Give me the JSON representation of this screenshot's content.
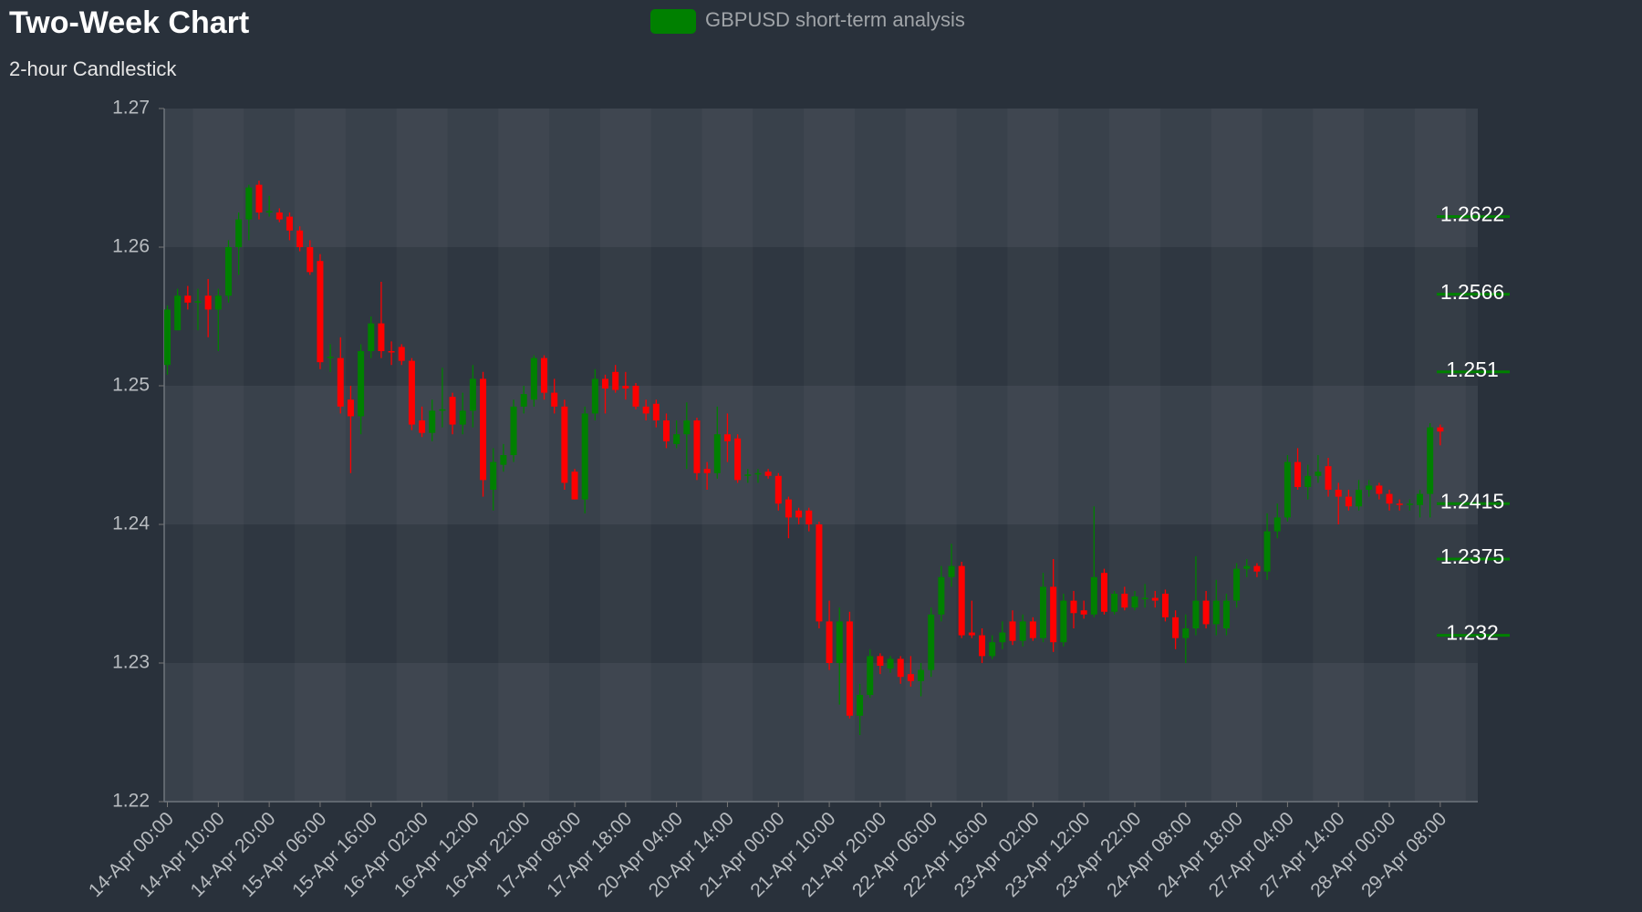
{
  "chart_data": {
    "type": "candlestick",
    "title": "Two-Week Chart",
    "subtitle": "2-hour Candlestick",
    "series": [
      {
        "name": "GBPUSD short-term analysis",
        "color": "#008000",
        "up_color": "#008000",
        "down_color": "#ff0000",
        "values": [
          [
            1.2515,
            1.2558,
            1.2508,
            1.2555
          ],
          [
            1.254,
            1.257,
            1.254,
            1.2565
          ],
          [
            1.2565,
            1.2572,
            1.2555,
            1.256
          ],
          [
            1.256,
            1.257,
            1.254,
            1.2561
          ],
          [
            1.2565,
            1.2577,
            1.2535,
            1.2555
          ],
          [
            1.2555,
            1.257,
            1.2525,
            1.2565
          ],
          [
            1.2565,
            1.2605,
            1.256,
            1.26
          ],
          [
            1.26,
            1.2625,
            1.258,
            1.262
          ],
          [
            1.262,
            1.2645,
            1.2605,
            1.2643
          ],
          [
            1.2645,
            1.2648,
            1.262,
            1.2625
          ],
          [
            1.2625,
            1.2637,
            1.2622,
            1.2626
          ],
          [
            1.2625,
            1.2628,
            1.2618,
            1.262
          ],
          [
            1.2622,
            1.2625,
            1.2605,
            1.2612
          ],
          [
            1.2612,
            1.2615,
            1.2597,
            1.26
          ],
          [
            1.26,
            1.2605,
            1.258,
            1.2582
          ],
          [
            1.259,
            1.2595,
            1.2512,
            1.2517
          ],
          [
            1.252,
            1.253,
            1.251,
            1.2521
          ],
          [
            1.252,
            1.2535,
            1.248,
            1.2485
          ],
          [
            1.249,
            1.25,
            1.2437,
            1.2478
          ],
          [
            1.2478,
            1.253,
            1.2465,
            1.2525
          ],
          [
            1.2525,
            1.255,
            1.252,
            1.2545
          ],
          [
            1.2545,
            1.2575,
            1.252,
            1.2525
          ],
          [
            1.2525,
            1.2532,
            1.2515,
            1.2524
          ],
          [
            1.2528,
            1.253,
            1.2515,
            1.2518
          ],
          [
            1.2518,
            1.252,
            1.2468,
            1.2472
          ],
          [
            1.2475,
            1.2485,
            1.2463,
            1.2466
          ],
          [
            1.2466,
            1.249,
            1.246,
            1.2482
          ],
          [
            1.2482,
            1.2513,
            1.247,
            1.2483
          ],
          [
            1.2492,
            1.2495,
            1.2465,
            1.2472
          ],
          [
            1.2472,
            1.2495,
            1.2465,
            1.2482
          ],
          [
            1.2482,
            1.2515,
            1.247,
            1.2505
          ],
          [
            1.2505,
            1.251,
            1.242,
            1.2432
          ],
          [
            1.2425,
            1.2455,
            1.241,
            1.2445
          ],
          [
            1.2443,
            1.2458,
            1.2438,
            1.245
          ],
          [
            1.245,
            1.249,
            1.2445,
            1.2485
          ],
          [
            1.2485,
            1.25,
            1.248,
            1.2494
          ],
          [
            1.249,
            1.2522,
            1.2485,
            1.252
          ],
          [
            1.252,
            1.2522,
            1.249,
            1.2495
          ],
          [
            1.2495,
            1.2505,
            1.248,
            1.2485
          ],
          [
            1.2485,
            1.249,
            1.2425,
            1.243
          ],
          [
            1.2438,
            1.244,
            1.2418,
            1.2418
          ],
          [
            1.2418,
            1.2485,
            1.2408,
            1.248
          ],
          [
            1.248,
            1.2512,
            1.2475,
            1.2505
          ],
          [
            1.2505,
            1.2508,
            1.248,
            1.2498
          ],
          [
            1.251,
            1.2515,
            1.2495,
            1.2497
          ],
          [
            1.25,
            1.251,
            1.249,
            1.2498
          ],
          [
            1.25,
            1.2502,
            1.2483,
            1.2485
          ],
          [
            1.2485,
            1.249,
            1.2475,
            1.248
          ],
          [
            1.2487,
            1.249,
            1.247,
            1.2475
          ],
          [
            1.2475,
            1.248,
            1.2455,
            1.246
          ],
          [
            1.2458,
            1.2475,
            1.2455,
            1.2465
          ],
          [
            1.2465,
            1.2488,
            1.244,
            1.2475
          ],
          [
            1.2475,
            1.2477,
            1.2432,
            1.2437
          ],
          [
            1.244,
            1.2445,
            1.2425,
            1.2437
          ],
          [
            1.2437,
            1.2485,
            1.2433,
            1.2465
          ],
          [
            1.2465,
            1.248,
            1.2445,
            1.246
          ],
          [
            1.2462,
            1.2465,
            1.243,
            1.2432
          ],
          [
            1.2435,
            1.244,
            1.243,
            1.2436
          ],
          [
            1.2436,
            1.244,
            1.243,
            1.2437
          ],
          [
            1.2438,
            1.244,
            1.2433,
            1.2435
          ],
          [
            1.2435,
            1.2437,
            1.241,
            1.2415
          ],
          [
            1.2418,
            1.242,
            1.239,
            1.2405
          ],
          [
            1.241,
            1.2412,
            1.24,
            1.2405
          ],
          [
            1.241,
            1.2412,
            1.2395,
            1.24
          ],
          [
            1.24,
            1.2402,
            1.2325,
            1.233
          ],
          [
            1.233,
            1.2345,
            1.2295,
            1.23
          ],
          [
            1.23,
            1.234,
            1.227,
            1.233
          ],
          [
            1.233,
            1.2337,
            1.226,
            1.2262
          ],
          [
            1.2262,
            1.2285,
            1.2248,
            1.2277
          ],
          [
            1.2277,
            1.231,
            1.2275,
            1.2305
          ],
          [
            1.2305,
            1.2307,
            1.2292,
            1.2298
          ],
          [
            1.2296,
            1.2305,
            1.2293,
            1.2303
          ],
          [
            1.2303,
            1.2305,
            1.2285,
            1.229
          ],
          [
            1.2292,
            1.2305,
            1.2283,
            1.2287
          ],
          [
            1.2287,
            1.23,
            1.2276,
            1.2295
          ],
          [
            1.2295,
            1.234,
            1.229,
            1.2335
          ],
          [
            1.2335,
            1.237,
            1.233,
            1.2362
          ],
          [
            1.2362,
            1.2386,
            1.2355,
            1.237
          ],
          [
            1.237,
            1.2373,
            1.2318,
            1.232
          ],
          [
            1.2322,
            1.2345,
            1.2318,
            1.232
          ],
          [
            1.232,
            1.2325,
            1.23,
            1.2305
          ],
          [
            1.2305,
            1.232,
            1.2303,
            1.2315
          ],
          [
            1.2315,
            1.233,
            1.231,
            1.2322
          ],
          [
            1.233,
            1.2338,
            1.2313,
            1.2316
          ],
          [
            1.2316,
            1.2335,
            1.2312,
            1.233
          ],
          [
            1.233,
            1.2333,
            1.2316,
            1.2318
          ],
          [
            1.2318,
            1.2365,
            1.2315,
            1.2355
          ],
          [
            1.2355,
            1.2375,
            1.2308,
            1.2315
          ],
          [
            1.2315,
            1.235,
            1.2312,
            1.2345
          ],
          [
            1.2345,
            1.2352,
            1.2325,
            1.2336
          ],
          [
            1.2338,
            1.2345,
            1.2332,
            1.2335
          ],
          [
            1.2335,
            1.2413,
            1.2333,
            1.2362
          ],
          [
            1.2365,
            1.2368,
            1.2335,
            1.2337
          ],
          [
            1.2337,
            1.2352,
            1.2335,
            1.235
          ],
          [
            1.235,
            1.2355,
            1.2338,
            1.234
          ],
          [
            1.234,
            1.2352,
            1.2338,
            1.2348
          ],
          [
            1.2346,
            1.2357,
            1.234,
            1.2347
          ],
          [
            1.2347,
            1.2352,
            1.234,
            1.2345
          ],
          [
            1.235,
            1.2353,
            1.233,
            1.2333
          ],
          [
            1.2333,
            1.2338,
            1.231,
            1.2318
          ],
          [
            1.2318,
            1.2335,
            1.23,
            1.2325
          ],
          [
            1.2325,
            1.2377,
            1.232,
            1.2345
          ],
          [
            1.2345,
            1.2352,
            1.2325,
            1.2328
          ],
          [
            1.2328,
            1.236,
            1.232,
            1.2345
          ],
          [
            1.2325,
            1.235,
            1.232,
            1.2345
          ],
          [
            1.2345,
            1.2372,
            1.234,
            1.2368
          ],
          [
            1.2368,
            1.2375,
            1.2362,
            1.237
          ],
          [
            1.237,
            1.2372,
            1.2362,
            1.2366
          ],
          [
            1.2366,
            1.2408,
            1.236,
            1.2395
          ],
          [
            1.2395,
            1.2415,
            1.239,
            1.2405
          ],
          [
            1.2405,
            1.245,
            1.2402,
            1.2445
          ],
          [
            1.2445,
            1.2455,
            1.2425,
            1.2427
          ],
          [
            1.2427,
            1.2443,
            1.2418,
            1.2435
          ],
          [
            1.2435,
            1.245,
            1.243,
            1.2438
          ],
          [
            1.2442,
            1.2448,
            1.242,
            1.2425
          ],
          [
            1.2425,
            1.243,
            1.24,
            1.242
          ],
          [
            1.242,
            1.2425,
            1.241,
            1.2413
          ],
          [
            1.2413,
            1.2432,
            1.241,
            1.2425
          ],
          [
            1.2425,
            1.2432,
            1.242,
            1.2428
          ],
          [
            1.2428,
            1.243,
            1.2418,
            1.2422
          ],
          [
            1.2422,
            1.2425,
            1.241,
            1.2415
          ],
          [
            1.2415,
            1.2418,
            1.241,
            1.2414
          ],
          [
            1.2414,
            1.2418,
            1.241,
            1.2415
          ],
          [
            1.2414,
            1.2425,
            1.2405,
            1.2422
          ],
          [
            1.2422,
            1.2473,
            1.2405,
            1.247
          ],
          [
            1.247,
            1.2472,
            1.2457,
            1.2467
          ]
        ]
      }
    ],
    "categories": [
      "14-Apr 00:00",
      null,
      null,
      null,
      null,
      "14-Apr 10:00",
      null,
      null,
      null,
      null,
      "14-Apr 20:00",
      null,
      null,
      null,
      null,
      "15-Apr 06:00",
      null,
      null,
      null,
      null,
      "15-Apr 16:00",
      null,
      null,
      null,
      null,
      "16-Apr 02:00",
      null,
      null,
      null,
      null,
      "16-Apr 12:00",
      null,
      null,
      null,
      null,
      "16-Apr 22:00",
      null,
      null,
      null,
      null,
      "17-Apr 08:00",
      null,
      null,
      null,
      null,
      "17-Apr 18:00",
      null,
      null,
      null,
      null,
      "20-Apr 04:00",
      null,
      null,
      null,
      null,
      "20-Apr 14:00",
      null,
      null,
      null,
      null,
      "21-Apr 00:00",
      null,
      null,
      null,
      null,
      "21-Apr 10:00",
      null,
      null,
      null,
      null,
      "21-Apr 20:00",
      null,
      null,
      null,
      null,
      "22-Apr 06:00",
      null,
      null,
      null,
      null,
      "22-Apr 16:00",
      null,
      null,
      null,
      null,
      "23-Apr 02:00",
      null,
      null,
      null,
      null,
      "23-Apr 12:00",
      null,
      null,
      null,
      null,
      "23-Apr 22:00",
      null,
      null,
      null,
      null,
      "24-Apr 08:00",
      null,
      null,
      null,
      null,
      "24-Apr 18:00",
      null,
      null,
      null,
      null,
      "27-Apr 04:00",
      null,
      null,
      null,
      null,
      "27-Apr 14:00",
      null,
      null,
      null,
      null,
      "28-Apr 00:00",
      null,
      null,
      null,
      null,
      "29-Apr 08:00"
    ],
    "levels": [
      1.2622,
      1.2566,
      1.251,
      1.2415,
      1.2375,
      1.232
    ],
    "level_color": "#008000",
    "ylim": [
      1.22,
      1.27
    ],
    "yticks": [
      1.22,
      1.23,
      1.24,
      1.25,
      1.26,
      1.27
    ],
    "grid": true
  }
}
